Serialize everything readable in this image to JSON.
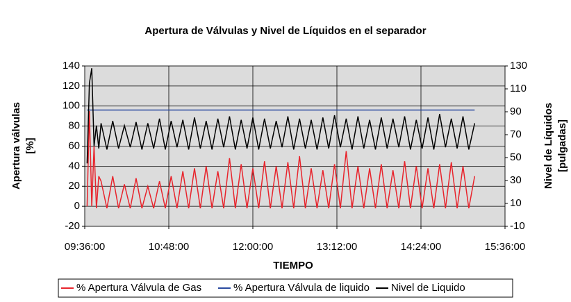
{
  "chart_data": {
    "type": "line",
    "title": "Apertura de Válvulas y  Nivel de Líquidos en el separador",
    "x_label": "TIEMPO",
    "y_label": [
      "Apertura válvulas",
      "[%]"
    ],
    "y2_label": [
      "Nivel de Líquidos",
      "[pulgadas]"
    ],
    "xlim": [
      "09:36:00",
      "15:36:00"
    ],
    "xticks": [
      "09:36:00",
      "10:48:00",
      "12:00:00",
      "13:12:00",
      "14:24:00",
      "15:36:00"
    ],
    "ylim": [
      -20,
      140
    ],
    "yticks": [
      -20,
      0,
      20,
      40,
      60,
      80,
      100,
      120,
      140
    ],
    "y2lim": [
      -10,
      130
    ],
    "y2ticks": [
      -10,
      10,
      30,
      50,
      70,
      90,
      110,
      130
    ],
    "grid": true,
    "legend": "bottom",
    "x": [
      "09:38:00",
      "09:40:00",
      "09:42:00",
      "09:44:00",
      "09:46:00",
      "09:48:00",
      "09:50:00",
      "09:55:00",
      "10:00:00",
      "10:05:00",
      "10:10:00",
      "10:15:00",
      "10:20:00",
      "10:25:00",
      "10:30:00",
      "10:35:00",
      "10:40:00",
      "10:45:00",
      "10:50:00",
      "10:55:00",
      "11:00:00",
      "11:05:00",
      "11:10:00",
      "11:15:00",
      "11:20:00",
      "11:25:00",
      "11:30:00",
      "11:35:00",
      "11:40:00",
      "11:45:00",
      "11:50:00",
      "11:55:00",
      "12:00:00",
      "12:05:00",
      "12:10:00",
      "12:15:00",
      "12:20:00",
      "12:25:00",
      "12:30:00",
      "12:35:00",
      "12:40:00",
      "12:45:00",
      "12:50:00",
      "12:55:00",
      "13:00:00",
      "13:05:00",
      "13:10:00",
      "13:15:00",
      "13:20:00",
      "13:25:00",
      "13:30:00",
      "13:35:00",
      "13:40:00",
      "13:45:00",
      "13:50:00",
      "13:55:00",
      "14:00:00",
      "14:05:00",
      "14:10:00",
      "14:15:00",
      "14:20:00",
      "14:25:00",
      "14:30:00",
      "14:35:00",
      "14:40:00",
      "14:45:00",
      "14:50:00",
      "14:55:00",
      "15:00:00",
      "15:05:00",
      "15:10:00"
    ],
    "series": [
      {
        "name": "% Apertura Válvula de Gas",
        "color": "#e8242c",
        "axis": "y",
        "values": [
          0,
          95,
          0,
          60,
          -2,
          30,
          25,
          -2,
          30,
          -2,
          22,
          -2,
          28,
          -2,
          20,
          -2,
          25,
          -2,
          30,
          -2,
          35,
          -2,
          38,
          -2,
          40,
          -2,
          35,
          -2,
          48,
          -2,
          42,
          -2,
          38,
          -2,
          45,
          -2,
          40,
          -2,
          44,
          -2,
          50,
          -2,
          38,
          -2,
          36,
          -2,
          42,
          -2,
          55,
          -2,
          40,
          -2,
          38,
          -2,
          42,
          -2,
          36,
          -2,
          45,
          -2,
          40,
          -2,
          38,
          -2,
          42,
          -2,
          44,
          -2,
          40,
          -2,
          30
        ]
      },
      {
        "name": "% Apertura Válvula de liquido",
        "color": "#2a4aa0",
        "axis": "y",
        "values": [
          96,
          96,
          96,
          96,
          96,
          96,
          96,
          96,
          96,
          96,
          96,
          96,
          96,
          96,
          96,
          96,
          96,
          96,
          96,
          96,
          96,
          96,
          96,
          96,
          96,
          96,
          96,
          96,
          96,
          96,
          96,
          96,
          96,
          96,
          96,
          96,
          96,
          96,
          96,
          96,
          96,
          96,
          96,
          96,
          96,
          96,
          96,
          96,
          96,
          96,
          96,
          96,
          96,
          96,
          96,
          96,
          96,
          96,
          96,
          96,
          96,
          96,
          96,
          96,
          96,
          96,
          96,
          96,
          96,
          96,
          96
        ]
      },
      {
        "name": "Nivel de Liquido",
        "color": "#000000",
        "axis": "y2",
        "values": [
          45,
          115,
          128,
          60,
          78,
          58,
          80,
          57,
          82,
          58,
          78,
          59,
          81,
          57,
          80,
          58,
          84,
          57,
          82,
          59,
          83,
          57,
          85,
          58,
          82,
          57,
          84,
          59,
          86,
          57,
          83,
          58,
          85,
          57,
          84,
          58,
          82,
          59,
          86,
          57,
          84,
          58,
          83,
          57,
          85,
          58,
          87,
          59,
          84,
          57,
          86,
          58,
          83,
          57,
          85,
          58,
          84,
          59,
          86,
          57,
          83,
          58,
          85,
          57,
          88,
          59,
          84,
          58,
          86,
          57,
          80
        ]
      }
    ]
  }
}
